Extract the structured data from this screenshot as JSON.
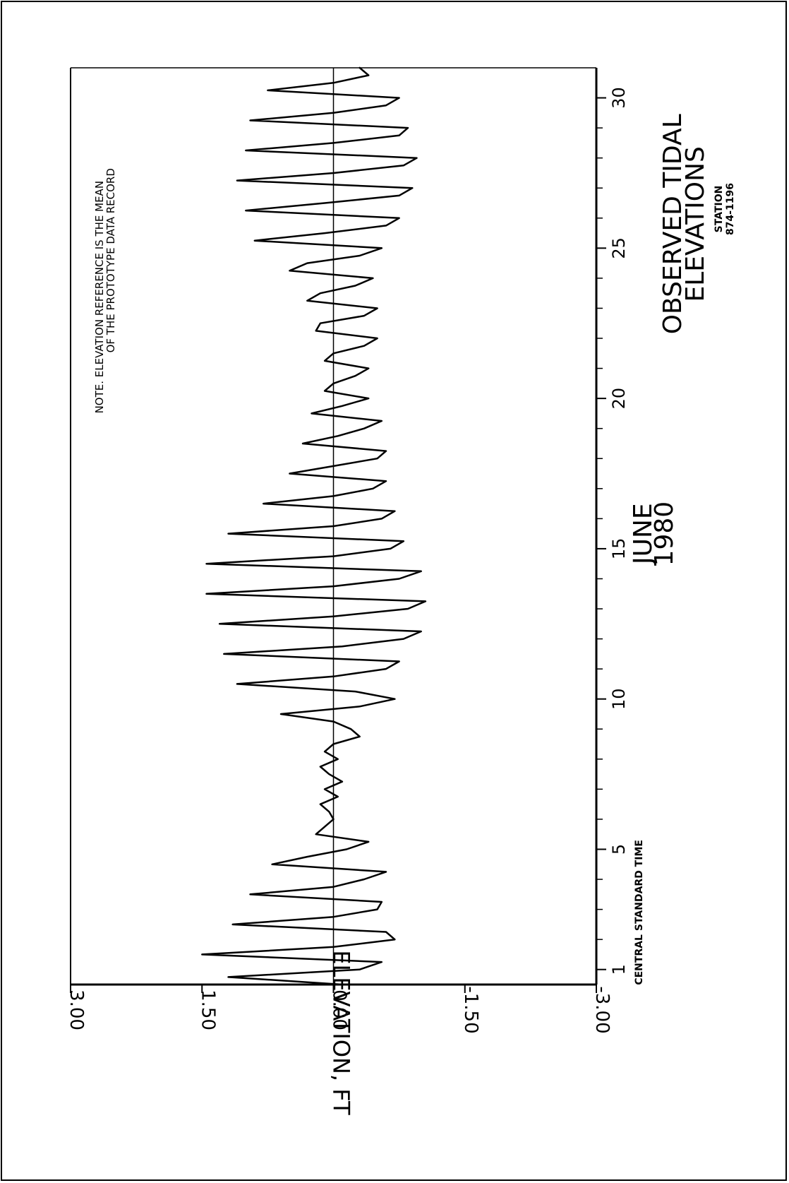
{
  "chart_data": {
    "type": "line",
    "orientation": "rotated-90-clockwise",
    "title": [
      "OBSERVED TIDAL",
      "ELEVATIONS"
    ],
    "station": [
      "STATION",
      "874-1196"
    ],
    "period": [
      "JUNE",
      "1980"
    ],
    "xlabel": "CENTRAL STANDARD TIME",
    "ylabel": "ELEVATION, FT",
    "note": [
      "NOTE.   ELEVATION REFERENCE IS THE MEAN",
      "OF THE PROTOTYPE DATA RECORD"
    ],
    "xlim": [
      0.5,
      31
    ],
    "ylim": [
      -3.0,
      3.0
    ],
    "x_ticks": [
      1,
      5,
      10,
      15,
      20,
      25,
      30
    ],
    "x_minor_ticks": [
      2,
      3,
      4,
      6,
      7,
      8,
      9,
      11,
      12,
      13,
      14,
      16,
      17,
      18,
      19,
      21,
      22,
      23,
      24,
      26,
      27,
      28,
      29
    ],
    "y_ticks": [
      {
        "value": 3.0,
        "label": "3.00"
      },
      {
        "value": 1.5,
        "label": "1.50"
      },
      {
        "value": 0.0,
        "label": "0.00"
      },
      {
        "value": -1.5,
        "label": "-1.50"
      },
      {
        "value": -3.0,
        "label": "-3.00"
      }
    ],
    "zero_line": true,
    "grid": false,
    "series": [
      {
        "values": [
          [
            0.5,
            -0.1
          ],
          [
            0.75,
            1.2
          ],
          [
            1.0,
            -0.3
          ],
          [
            1.25,
            -0.55
          ],
          [
            1.5,
            1.5
          ],
          [
            1.75,
            0.0
          ],
          [
            2.0,
            -0.7
          ],
          [
            2.25,
            -0.6
          ],
          [
            2.5,
            1.15
          ],
          [
            2.75,
            0.0
          ],
          [
            3.0,
            -0.5
          ],
          [
            3.25,
            -0.55
          ],
          [
            3.5,
            0.95
          ],
          [
            3.75,
            0.0
          ],
          [
            4.0,
            -0.35
          ],
          [
            4.25,
            -0.6
          ],
          [
            4.5,
            0.7
          ],
          [
            4.75,
            0.3
          ],
          [
            5.0,
            -0.15
          ],
          [
            5.25,
            -0.4
          ],
          [
            5.5,
            0.2
          ],
          [
            5.75,
            0.1
          ],
          [
            6.0,
            0.0
          ],
          [
            6.25,
            0.05
          ],
          [
            6.5,
            0.15
          ],
          [
            6.75,
            -0.05
          ],
          [
            7.0,
            0.1
          ],
          [
            7.25,
            -0.1
          ],
          [
            7.5,
            0.05
          ],
          [
            7.75,
            0.15
          ],
          [
            8.0,
            -0.05
          ],
          [
            8.25,
            0.1
          ],
          [
            8.5,
            0.0
          ],
          [
            8.75,
            -0.3
          ],
          [
            9.0,
            -0.2
          ],
          [
            9.25,
            0.0
          ],
          [
            9.5,
            0.6
          ],
          [
            9.75,
            -0.3
          ],
          [
            10.0,
            -0.7
          ],
          [
            10.25,
            -0.25
          ],
          [
            10.5,
            1.1
          ],
          [
            10.75,
            0.0
          ],
          [
            11.0,
            -0.6
          ],
          [
            11.25,
            -0.75
          ],
          [
            11.5,
            1.25
          ],
          [
            11.75,
            -0.1
          ],
          [
            12.0,
            -0.8
          ],
          [
            12.25,
            -1.0
          ],
          [
            12.5,
            1.3
          ],
          [
            12.75,
            0.0
          ],
          [
            13.0,
            -0.85
          ],
          [
            13.25,
            -1.05
          ],
          [
            13.5,
            1.45
          ],
          [
            13.75,
            0.0
          ],
          [
            14.0,
            -0.75
          ],
          [
            14.25,
            -1.0
          ],
          [
            14.5,
            1.45
          ],
          [
            14.75,
            0.0
          ],
          [
            15.0,
            -0.65
          ],
          [
            15.25,
            -0.8
          ],
          [
            15.5,
            1.2
          ],
          [
            15.75,
            0.0
          ],
          [
            16.0,
            -0.55
          ],
          [
            16.25,
            -0.7
          ],
          [
            16.5,
            0.8
          ],
          [
            16.75,
            0.0
          ],
          [
            17.0,
            -0.45
          ],
          [
            17.25,
            -0.6
          ],
          [
            17.5,
            0.5
          ],
          [
            17.75,
            0.0
          ],
          [
            18.0,
            -0.5
          ],
          [
            18.25,
            -0.6
          ],
          [
            18.5,
            0.35
          ],
          [
            18.75,
            -0.05
          ],
          [
            19.0,
            -0.35
          ],
          [
            19.25,
            -0.55
          ],
          [
            19.5,
            0.25
          ],
          [
            19.75,
            -0.1
          ],
          [
            20.0,
            -0.4
          ],
          [
            20.25,
            0.1
          ],
          [
            20.5,
            0.0
          ],
          [
            20.75,
            -0.25
          ],
          [
            21.0,
            -0.4
          ],
          [
            21.25,
            0.1
          ],
          [
            21.5,
            0.0
          ],
          [
            21.75,
            -0.35
          ],
          [
            22.0,
            -0.5
          ],
          [
            22.25,
            0.2
          ],
          [
            22.5,
            0.15
          ],
          [
            22.75,
            -0.35
          ],
          [
            23.0,
            -0.5
          ],
          [
            23.25,
            0.3
          ],
          [
            23.5,
            0.15
          ],
          [
            23.75,
            -0.25
          ],
          [
            24.0,
            -0.45
          ],
          [
            24.25,
            0.5
          ],
          [
            24.5,
            0.3
          ],
          [
            24.75,
            -0.3
          ],
          [
            25.0,
            -0.55
          ],
          [
            25.25,
            0.9
          ],
          [
            25.5,
            0.1
          ],
          [
            25.75,
            -0.6
          ],
          [
            26.0,
            -0.75
          ],
          [
            26.25,
            1.0
          ],
          [
            26.5,
            0.1
          ],
          [
            26.75,
            -0.75
          ],
          [
            27.0,
            -0.9
          ],
          [
            27.25,
            1.1
          ],
          [
            27.5,
            0.0
          ],
          [
            27.75,
            -0.8
          ],
          [
            28.0,
            -0.95
          ],
          [
            28.25,
            1.0
          ],
          [
            28.5,
            0.0
          ],
          [
            28.75,
            -0.75
          ],
          [
            29.0,
            -0.85
          ],
          [
            29.25,
            0.95
          ],
          [
            29.5,
            0.0
          ],
          [
            29.75,
            -0.6
          ],
          [
            30.0,
            -0.75
          ],
          [
            30.25,
            0.75
          ],
          [
            30.5,
            0.0
          ],
          [
            30.75,
            -0.4
          ],
          [
            31.0,
            -0.3
          ]
        ]
      }
    ]
  }
}
